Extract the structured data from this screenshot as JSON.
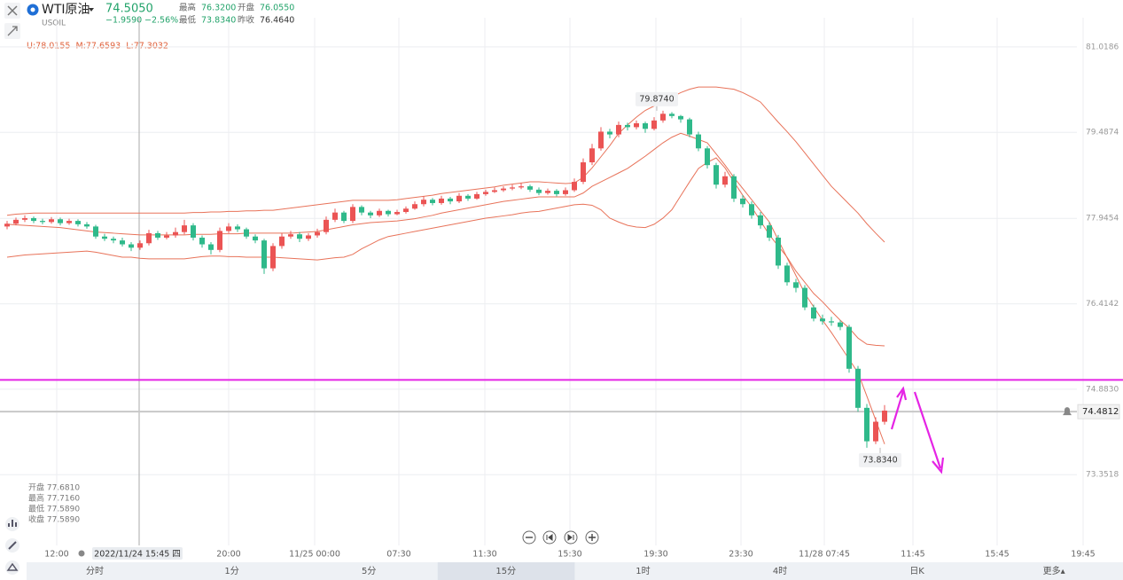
{
  "header": {
    "symbol": "WTI原油",
    "price": "74.5050",
    "change": "−1.9590",
    "change_pct": "−2.56%",
    "code": "USOIL",
    "stats": [
      [
        "最高",
        "76.3200"
      ],
      [
        "开盘",
        "76.0550"
      ],
      [
        "最低",
        "73.8340"
      ],
      [
        "昨收",
        "76.4640"
      ]
    ]
  },
  "indicator_label": "U:78.0155  M:77.6593  L:77.3032",
  "readout": [
    "开盘 77.6810",
    "最高 77.7160",
    "最低 77.5890",
    "收盘 77.5890"
  ],
  "tabs": [
    "分时",
    "1分",
    "5分",
    "15分",
    "1时",
    "4时",
    "日K",
    "更多▴"
  ],
  "selected_tab": "15分",
  "chart_data": {
    "type": "candlestick",
    "up_color": "#eb5454",
    "down_color": "#2fb98a",
    "grid": true,
    "ylim": [
      72.0838,
      81.5416
    ],
    "yticks": [
      81.0186,
      79.4874,
      77.9454,
      76.4142,
      {
        "value": 74.883,
        "label": "74.8830"
      },
      73.3518
    ],
    "x_labels": [
      "12:00",
      "20:00",
      "11/25 00:00",
      "07:30",
      "11:30",
      "15:30",
      "19:30",
      "23:30",
      "11/28 07:45",
      "11:45",
      "15:45",
      "19:45"
    ],
    "crosshair_label": "2022/11/24 15:45 四",
    "hline": {
      "value": 75.05,
      "color": "#e524e5"
    },
    "last_price": {
      "value": 74.4812,
      "label": "74.4812"
    },
    "annotations": [
      {
        "value": 79.874,
        "label": "79.8740"
      },
      {
        "value": 73.834,
        "label": "73.8340"
      }
    ],
    "ohlc": [
      [
        77.8,
        77.9,
        77.75,
        77.85
      ],
      [
        77.85,
        77.96,
        77.82,
        77.92
      ],
      [
        77.92,
        78.0,
        77.88,
        77.95
      ],
      [
        77.95,
        77.98,
        77.86,
        77.9
      ],
      [
        77.9,
        77.94,
        77.84,
        77.88
      ],
      [
        77.88,
        77.97,
        77.85,
        77.93
      ],
      [
        77.93,
        77.96,
        77.82,
        77.86
      ],
      [
        77.86,
        77.94,
        77.83,
        77.9
      ],
      [
        77.9,
        77.93,
        77.8,
        77.84
      ],
      [
        77.84,
        77.88,
        77.76,
        77.8
      ],
      [
        77.8,
        77.83,
        77.58,
        77.62
      ],
      [
        77.62,
        77.67,
        77.54,
        77.58
      ],
      [
        77.58,
        77.62,
        77.5,
        77.55
      ],
      [
        77.55,
        77.6,
        77.44,
        77.48
      ],
      [
        77.48,
        77.52,
        77.36,
        77.42
      ],
      [
        77.42,
        77.55,
        77.38,
        77.5
      ],
      [
        77.5,
        77.74,
        77.46,
        77.68
      ],
      [
        77.68,
        77.72,
        77.56,
        77.6
      ],
      [
        77.6,
        77.7,
        77.57,
        77.64
      ],
      [
        77.64,
        77.78,
        77.6,
        77.7
      ],
      [
        77.7,
        77.92,
        77.66,
        77.82
      ],
      [
        77.82,
        77.86,
        77.55,
        77.6
      ],
      [
        77.6,
        77.64,
        77.42,
        77.48
      ],
      [
        77.48,
        77.52,
        77.3,
        77.38
      ],
      [
        77.38,
        77.78,
        77.34,
        77.72
      ],
      [
        77.72,
        77.86,
        77.68,
        77.8
      ],
      [
        77.8,
        77.84,
        77.7,
        77.75
      ],
      [
        77.75,
        77.78,
        77.58,
        77.62
      ],
      [
        77.62,
        77.66,
        77.5,
        77.55
      ],
      [
        77.55,
        77.58,
        76.95,
        77.05
      ],
      [
        77.05,
        77.5,
        77.0,
        77.45
      ],
      [
        77.45,
        77.68,
        77.4,
        77.62
      ],
      [
        77.62,
        77.72,
        77.58,
        77.66
      ],
      [
        77.66,
        77.7,
        77.52,
        77.58
      ],
      [
        77.58,
        77.68,
        77.54,
        77.64
      ],
      [
        77.64,
        77.76,
        77.6,
        77.7
      ],
      [
        77.7,
        77.98,
        77.66,
        77.92
      ],
      [
        77.92,
        78.12,
        77.88,
        78.05
      ],
      [
        78.05,
        78.08,
        77.86,
        77.9
      ],
      [
        77.9,
        78.2,
        77.86,
        78.15
      ],
      [
        78.15,
        78.18,
        78.0,
        78.05
      ],
      [
        78.05,
        78.08,
        77.95,
        78.0
      ],
      [
        78.0,
        78.12,
        77.97,
        78.08
      ],
      [
        78.08,
        78.1,
        77.98,
        78.02
      ],
      [
        78.02,
        78.1,
        78.0,
        78.06
      ],
      [
        78.06,
        78.16,
        78.03,
        78.12
      ],
      [
        78.12,
        78.25,
        78.1,
        78.2
      ],
      [
        78.2,
        78.34,
        78.16,
        78.28
      ],
      [
        78.28,
        78.31,
        78.18,
        78.22
      ],
      [
        78.22,
        78.35,
        78.19,
        78.3
      ],
      [
        78.3,
        78.33,
        78.2,
        78.25
      ],
      [
        78.25,
        78.4,
        78.22,
        78.35
      ],
      [
        78.35,
        78.38,
        78.26,
        78.3
      ],
      [
        78.3,
        78.42,
        78.28,
        78.38
      ],
      [
        78.38,
        78.46,
        78.35,
        78.42
      ],
      [
        78.42,
        78.5,
        78.4,
        78.45
      ],
      [
        78.45,
        78.52,
        78.42,
        78.48
      ],
      [
        78.48,
        78.55,
        78.45,
        78.5
      ],
      [
        78.5,
        78.58,
        78.47,
        78.52
      ],
      [
        78.52,
        78.55,
        78.42,
        78.46
      ],
      [
        78.46,
        78.5,
        78.36,
        78.4
      ],
      [
        78.4,
        78.48,
        78.37,
        78.44
      ],
      [
        78.44,
        78.47,
        78.34,
        78.38
      ],
      [
        78.38,
        78.5,
        78.35,
        78.45
      ],
      [
        78.45,
        78.66,
        78.42,
        78.6
      ],
      [
        78.6,
        79.02,
        78.56,
        78.95
      ],
      [
        78.95,
        79.28,
        78.9,
        79.2
      ],
      [
        79.2,
        79.58,
        79.16,
        79.5
      ],
      [
        79.5,
        79.55,
        79.38,
        79.45
      ],
      [
        79.45,
        79.68,
        79.4,
        79.62
      ],
      [
        79.62,
        79.66,
        79.52,
        79.58
      ],
      [
        79.58,
        79.7,
        79.54,
        79.65
      ],
      [
        79.65,
        79.68,
        79.48,
        79.55
      ],
      [
        79.55,
        79.76,
        79.52,
        79.7
      ],
      [
        79.7,
        79.874,
        79.66,
        79.82
      ],
      [
        79.82,
        79.85,
        79.74,
        79.78
      ],
      [
        79.78,
        79.8,
        79.66,
        79.72
      ],
      [
        79.72,
        79.75,
        79.4,
        79.45
      ],
      [
        79.45,
        79.5,
        79.15,
        79.2
      ],
      [
        79.2,
        79.24,
        78.84,
        78.9
      ],
      [
        78.9,
        78.94,
        78.48,
        78.55
      ],
      [
        78.55,
        78.78,
        78.5,
        78.7
      ],
      [
        78.7,
        78.74,
        78.24,
        78.3
      ],
      [
        78.3,
        78.36,
        78.14,
        78.2
      ],
      [
        78.2,
        78.25,
        77.94,
        78.0
      ],
      [
        78.0,
        78.06,
        77.76,
        77.82
      ],
      [
        77.82,
        77.88,
        77.54,
        77.6
      ],
      [
        77.6,
        77.65,
        77.04,
        77.1
      ],
      [
        77.1,
        77.15,
        76.74,
        76.8
      ],
      [
        76.8,
        76.86,
        76.62,
        76.7
      ],
      [
        76.7,
        76.75,
        76.3,
        76.35
      ],
      [
        76.35,
        76.4,
        76.1,
        76.15
      ],
      [
        76.15,
        76.22,
        76.04,
        76.1
      ],
      [
        76.1,
        76.18,
        76.02,
        76.08
      ],
      [
        76.08,
        76.12,
        75.94,
        76.0
      ],
      [
        76.0,
        76.04,
        75.18,
        75.25
      ],
      [
        75.25,
        75.3,
        74.48,
        74.55
      ],
      [
        74.55,
        74.62,
        73.834,
        73.95
      ],
      [
        73.95,
        74.38,
        73.9,
        74.3
      ],
      [
        74.3,
        74.6,
        74.25,
        74.5
      ]
    ],
    "bands": {
      "color": "#e8735a",
      "upper": [
        78.0,
        78.02,
        78.03,
        78.04,
        78.04,
        78.04,
        78.04,
        78.04,
        78.04,
        78.04,
        78.04,
        78.04,
        78.04,
        78.04,
        78.04,
        78.04,
        78.04,
        78.04,
        78.04,
        78.04,
        78.04,
        78.05,
        78.05,
        78.06,
        78.06,
        78.07,
        78.07,
        78.08,
        78.08,
        78.09,
        78.09,
        78.11,
        78.13,
        78.15,
        78.17,
        78.19,
        78.21,
        78.23,
        78.25,
        78.27,
        78.27,
        78.27,
        78.27,
        78.27,
        78.28,
        78.3,
        78.32,
        78.34,
        78.36,
        78.39,
        78.41,
        78.43,
        78.45,
        78.47,
        78.49,
        78.51,
        78.54,
        78.56,
        78.58,
        78.6,
        78.6,
        78.59,
        78.58,
        78.57,
        78.58,
        78.68,
        78.85,
        79.05,
        79.25,
        79.47,
        79.62,
        79.76,
        79.88,
        79.96,
        80.03,
        80.12,
        80.2,
        80.26,
        80.3,
        80.3,
        80.3,
        80.28,
        80.26,
        80.2,
        80.12,
        80.03,
        79.85,
        79.67,
        79.5,
        79.32,
        79.12,
        78.92,
        78.72,
        78.52,
        78.36,
        78.2,
        78.04,
        77.85,
        77.68,
        77.52
      ],
      "middle": [
        77.84,
        77.83,
        77.82,
        77.81,
        77.8,
        77.79,
        77.78,
        77.76,
        77.74,
        77.72,
        77.7,
        77.69,
        77.68,
        77.67,
        77.66,
        77.65,
        77.65,
        77.65,
        77.65,
        77.65,
        77.65,
        77.66,
        77.66,
        77.66,
        77.67,
        77.67,
        77.67,
        77.68,
        77.68,
        77.68,
        77.68,
        77.68,
        77.68,
        77.69,
        77.7,
        77.71,
        77.74,
        77.77,
        77.8,
        77.83,
        77.85,
        77.87,
        77.88,
        77.89,
        77.9,
        77.92,
        77.94,
        77.97,
        78.0,
        78.04,
        78.07,
        78.1,
        78.13,
        78.16,
        78.19,
        78.22,
        78.25,
        78.27,
        78.29,
        78.31,
        78.33,
        78.33,
        78.33,
        78.33,
        78.33,
        78.4,
        78.52,
        78.6,
        78.68,
        78.76,
        78.84,
        78.95,
        79.06,
        79.18,
        79.3,
        79.4,
        79.47,
        79.42,
        79.36,
        79.3,
        79.1,
        78.9,
        78.68,
        78.48,
        78.28,
        78.08,
        77.88,
        77.56,
        77.24,
        76.92,
        76.6,
        76.36,
        76.12,
        75.9,
        75.66,
        75.42,
        75.18,
        74.76,
        74.33,
        73.9
      ],
      "lower": [
        77.25,
        77.27,
        77.29,
        77.3,
        77.31,
        77.32,
        77.33,
        77.34,
        77.35,
        77.36,
        77.34,
        77.31,
        77.28,
        77.25,
        77.25,
        77.23,
        77.22,
        77.22,
        77.22,
        77.22,
        77.22,
        77.24,
        77.26,
        77.27,
        77.27,
        77.26,
        77.26,
        77.25,
        77.25,
        77.25,
        77.25,
        77.24,
        77.23,
        77.22,
        77.21,
        77.2,
        77.22,
        77.24,
        77.25,
        77.3,
        77.4,
        77.48,
        77.56,
        77.62,
        77.65,
        77.68,
        77.71,
        77.74,
        77.77,
        77.8,
        77.83,
        77.86,
        77.89,
        77.92,
        77.95,
        77.97,
        77.99,
        78.01,
        78.04,
        78.06,
        78.07,
        78.1,
        78.13,
        78.16,
        78.19,
        78.2,
        78.18,
        78.1,
        77.95,
        77.88,
        77.82,
        77.79,
        77.78,
        77.84,
        77.95,
        78.1,
        78.35,
        78.6,
        78.84,
        78.95,
        79.03,
        78.85,
        78.6,
        78.36,
        78.15,
        77.9,
        77.65,
        77.45,
        77.25,
        77.0,
        76.8,
        76.6,
        76.45,
        76.28,
        76.12,
        75.98,
        75.8,
        75.69,
        75.67,
        75.66
      ]
    }
  }
}
